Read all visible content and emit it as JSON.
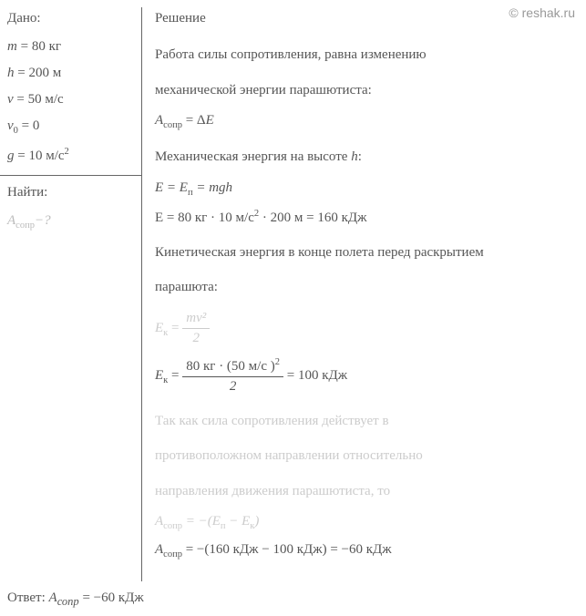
{
  "watermark": "© reshak.ru",
  "given": {
    "title": "Дано:",
    "items": [
      {
        "var": "m",
        "val": "80",
        "unit": "кг"
      },
      {
        "var": "h",
        "val": "200",
        "unit": "м"
      },
      {
        "var": "v",
        "val": "50",
        "unit": "м/с"
      },
      {
        "var": "v",
        "sub": "0",
        "val": "0",
        "unit": ""
      },
      {
        "var": "g",
        "val": "10",
        "unit": "м/с",
        "sup": "2"
      }
    ]
  },
  "find": {
    "title": "Найти:",
    "var": "A",
    "sub": "сопр",
    "tail": "−?"
  },
  "solution": {
    "title": "Решение",
    "text1a": "Работа силы сопротивления, равна изменению",
    "text1b": "механической энергии парашютиста:",
    "eq1_lhs": "A",
    "eq1_sub": "сопр",
    "eq1_rhs": "Δ",
    "eq1_rhs2": "E",
    "text2": "Механическая энергия на высоте",
    "text2_var": "h",
    "text2_colon": ":",
    "eq2": "E = E",
    "eq2_sub": "п",
    "eq2_rhs": " = mgh",
    "eq3": "E = 80 кг · 10 м/с² · 200 м = 160 кДж",
    "text3a": "Кинетическая энергия в конце полета перед раскрытием",
    "text3b": "парашюта:",
    "eq4_lhs": "E",
    "eq4_sub": "к",
    "eq4_num": "mv²",
    "eq4_den": "2",
    "eq5_lhs": "E",
    "eq5_sub": "к",
    "eq5_num": "80 кг · (50 м/с )²",
    "eq5_den": "2",
    "eq5_result": " = 100 кДж",
    "text4a": "Так как сила сопротивления действует в",
    "text4b": "противоположном направлении относительно",
    "text4c": "направления движения парашютиста, то",
    "eq6_lhs": "A",
    "eq6_sub": "сопр",
    "eq6_mid": " = −(E",
    "eq6_sub2": "п",
    "eq6_mid2": " − E",
    "eq6_sub3": "к",
    "eq6_end": ")",
    "eq7_lhs": "A",
    "eq7_sub": "сопр",
    "eq7_rhs": " = −(160 кДж − 100 кДж) = −60 кДж"
  },
  "answer": {
    "label": "Ответ:",
    "var": "A",
    "sub": "сопр",
    "val": " = −60 кДж"
  },
  "colors": {
    "text": "#555555",
    "faded": "#cccccc",
    "border": "#666666",
    "background": "#ffffff"
  }
}
